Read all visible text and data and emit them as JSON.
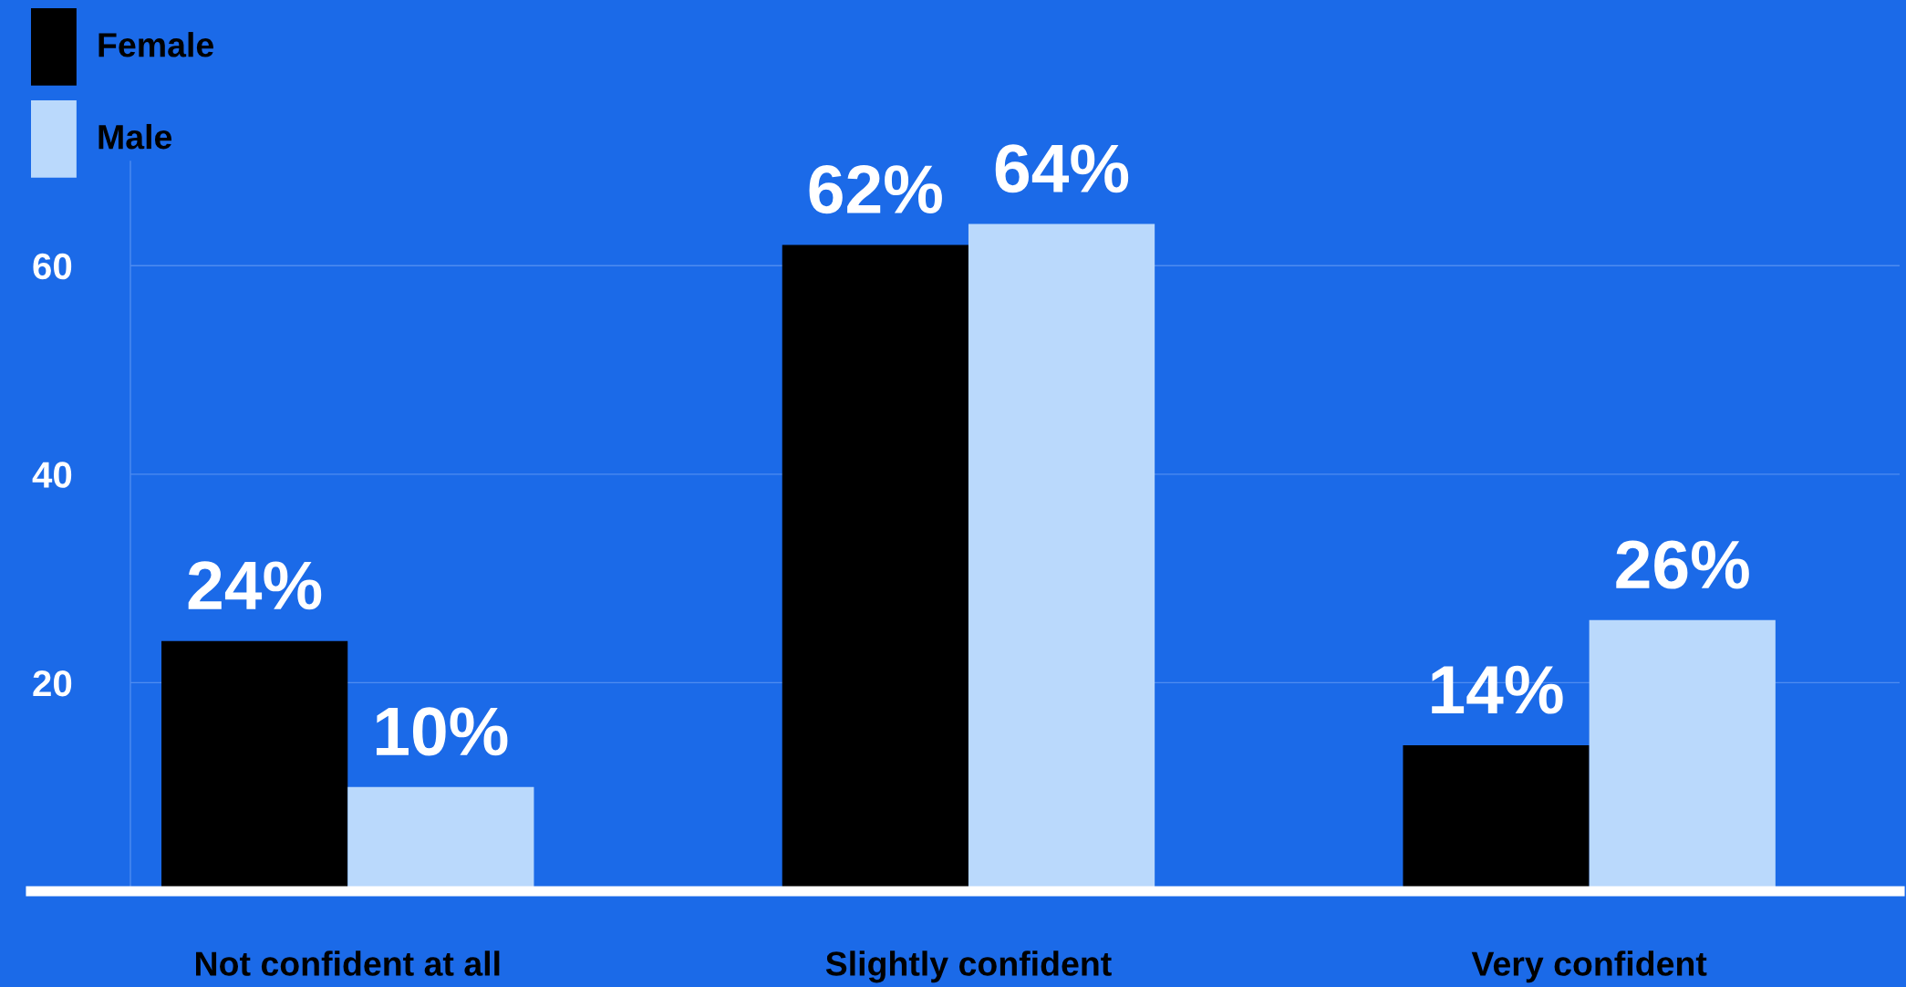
{
  "chart_data": {
    "type": "bar",
    "categories": [
      "Not confident at all",
      "Slightly confident",
      "Very confident"
    ],
    "series": [
      {
        "name": "Female",
        "color": "#000000",
        "values": [
          24,
          62,
          14
        ],
        "value_labels": [
          "24%",
          "62%",
          "14%"
        ]
      },
      {
        "name": "Male",
        "color": "#bad9fc",
        "values": [
          10,
          64,
          26
        ],
        "value_labels": [
          "10%",
          "64%",
          "26%"
        ]
      }
    ],
    "ylim": [
      0,
      70
    ],
    "yticks": [
      20,
      40,
      60
    ],
    "grid": "y",
    "legend": "top left"
  }
}
